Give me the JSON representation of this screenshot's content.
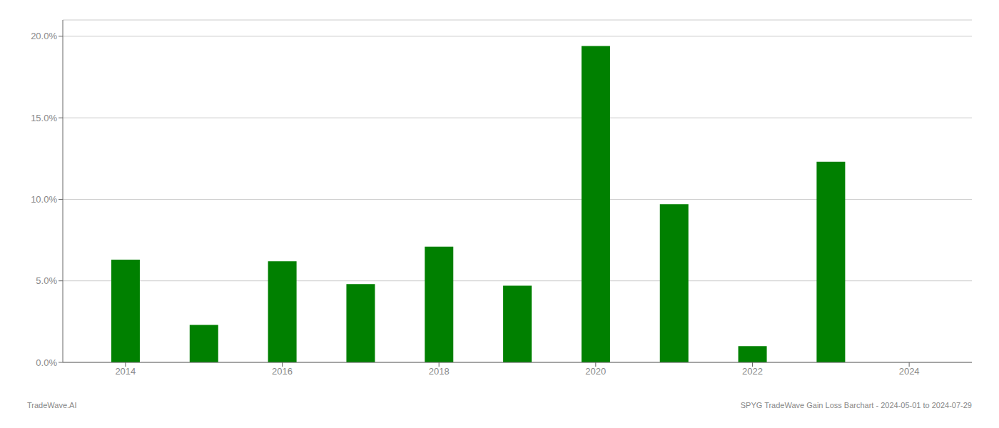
{
  "chart_data": {
    "type": "bar",
    "x": [
      2014,
      2015,
      2016,
      2017,
      2018,
      2019,
      2020,
      2021,
      2022,
      2023,
      2024
    ],
    "values": [
      0.063,
      0.023,
      0.062,
      0.048,
      0.071,
      0.047,
      0.194,
      0.097,
      0.01,
      0.123,
      0.0
    ],
    "color": "#008000",
    "xlim": [
      2013.2,
      2024.8
    ],
    "xticks": [
      2014,
      2016,
      2018,
      2020,
      2022,
      2024
    ],
    "ylim": [
      0,
      0.21
    ],
    "yticks": [
      {
        "value": 0.0,
        "label": "0.0%"
      },
      {
        "value": 0.05,
        "label": "5.0%"
      },
      {
        "value": 0.1,
        "label": "10.0%"
      },
      {
        "value": 0.15,
        "label": "15.0%"
      },
      {
        "value": 0.2,
        "label": "20.0%"
      }
    ],
    "grid": "y",
    "annotations": [
      "TradeWave.AI",
      "SPYG TradeWave Gain Loss Barchart - 2024-05-01 to 2024-07-29"
    ]
  }
}
